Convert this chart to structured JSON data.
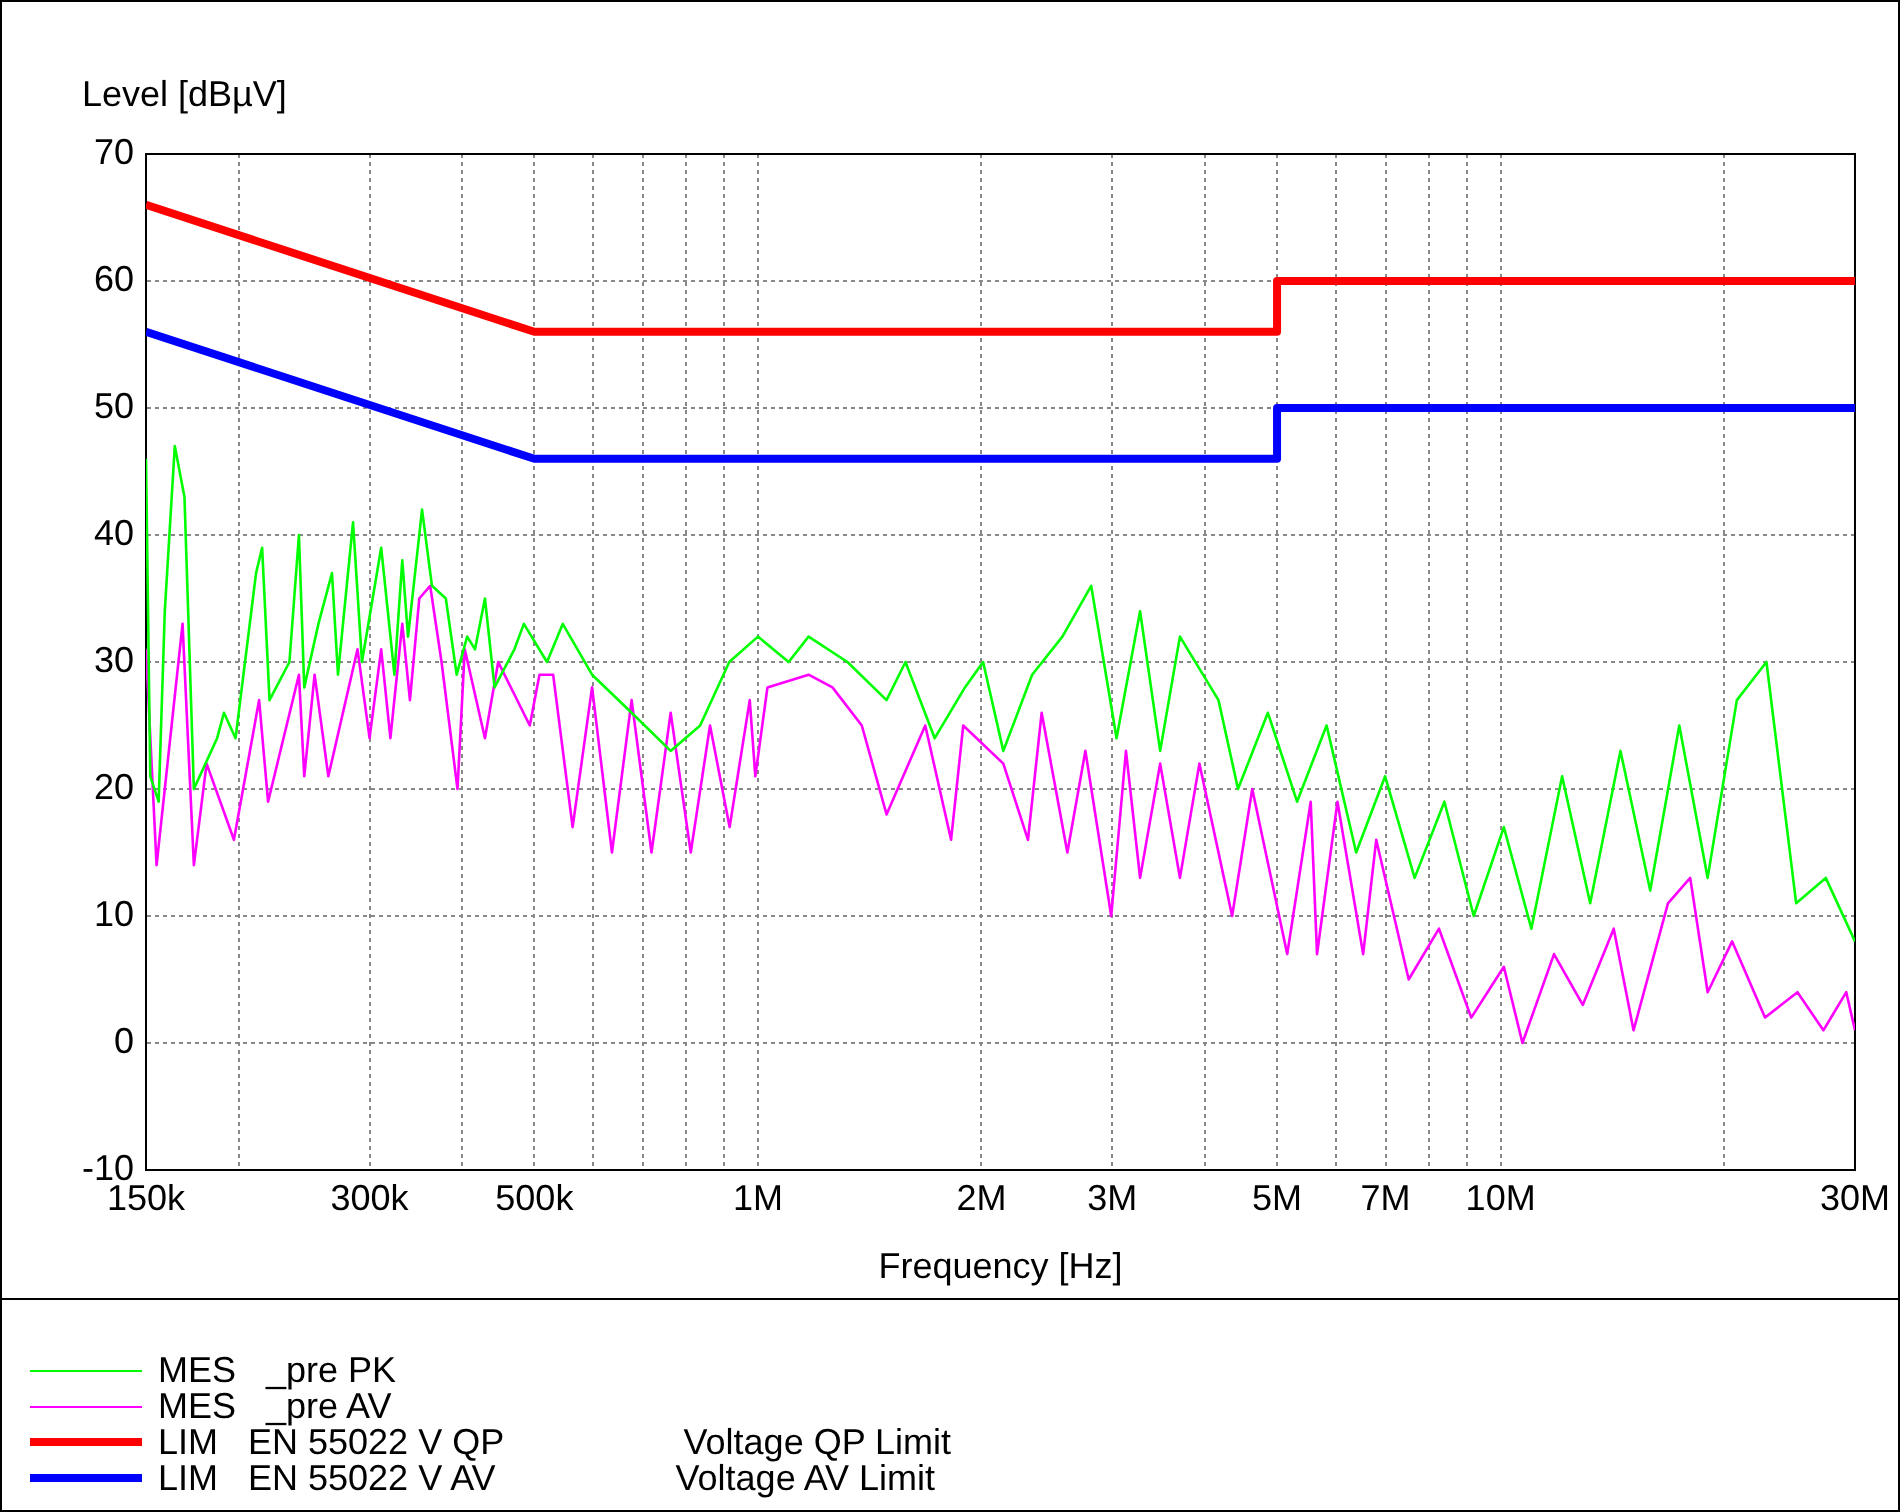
{
  "chart_data": {
    "type": "line",
    "ylabel": "Level [dBµV]",
    "xlabel": "Frequency [Hz]",
    "log": "x",
    "grid": true,
    "legend": "bottom",
    "marker": "none",
    "line_style": "solid",
    "xlim": [
      150000,
      30000000
    ],
    "xticks": [
      {
        "value": 150000,
        "label": "150k"
      },
      {
        "value": 200000,
        "label": null
      },
      {
        "value": 300000,
        "label": "300k"
      },
      {
        "value": 400000,
        "label": null
      },
      {
        "value": 500000,
        "label": "500k"
      },
      {
        "value": 600000,
        "label": null
      },
      {
        "value": 700000,
        "label": null
      },
      {
        "value": 800000,
        "label": null
      },
      {
        "value": 900000,
        "label": null
      },
      {
        "value": 1000000,
        "label": "1M"
      },
      {
        "value": 2000000,
        "label": "2M"
      },
      {
        "value": 3000000,
        "label": "3M"
      },
      {
        "value": 4000000,
        "label": null
      },
      {
        "value": 5000000,
        "label": "5M"
      },
      {
        "value": 6000000,
        "label": null
      },
      {
        "value": 7000000,
        "label": "7M"
      },
      {
        "value": 8000000,
        "label": null
      },
      {
        "value": 9000000,
        "label": null
      },
      {
        "value": 10000000,
        "label": "10M"
      },
      {
        "value": 20000000,
        "label": null
      },
      {
        "value": 30000000,
        "label": "30M"
      }
    ],
    "ylim": [
      -10,
      70
    ],
    "yticks": [
      -10,
      0,
      10,
      20,
      30,
      40,
      50,
      60,
      70
    ],
    "series": [
      {
        "name": "MES   _pre PK",
        "color": "#00ff00",
        "x": [
          150000,
          152000,
          156000,
          159000,
          164000,
          169000,
          174000,
          187000,
          191000,
          198000,
          211000,
          215000,
          220000,
          234000,
          241000,
          245000,
          256000,
          267000,
          272000,
          285000,
          293000,
          311000,
          324000,
          332000,
          338000,
          353000,
          364000,
          380000,
          393000,
          406000,
          416000,
          429000,
          442000,
          470000,
          484000,
          520000,
          546000,
          598000,
          676000,
          763000,
          836000,
          915000,
          1000000,
          1100000,
          1170000,
          1320000,
          1490000,
          1580000,
          1730000,
          1900000,
          2010000,
          2140000,
          2340000,
          2570000,
          2810000,
          3040000,
          3270000,
          3480000,
          3700000,
          4170000,
          4430000,
          4860000,
          5320000,
          5830000,
          6390000,
          6990000,
          7660000,
          8400000,
          9200000,
          10100000,
          11000000,
          12100000,
          13200000,
          14500000,
          15900000,
          17400000,
          19000000,
          20800000,
          22800000,
          25000000,
          27400000,
          30000000
        ],
        "values": [
          46,
          21,
          19,
          34,
          47,
          43,
          20,
          24,
          26,
          24,
          37,
          39,
          27,
          30,
          40,
          28,
          33,
          37,
          29,
          41,
          30,
          39,
          29,
          38,
          32,
          42,
          36,
          35,
          29,
          32,
          31,
          35,
          28,
          31,
          33,
          30,
          33,
          29,
          26,
          23,
          25,
          30,
          32,
          30,
          32,
          30,
          27,
          30,
          24,
          28,
          30,
          23,
          29,
          32,
          36,
          24,
          34,
          23,
          32,
          27,
          20,
          26,
          19,
          25,
          15,
          21,
          13,
          19,
          10,
          17,
          9,
          21,
          11,
          23,
          12,
          25,
          13,
          27,
          30,
          11,
          13,
          8
        ]
      },
      {
        "name": "MES   _pre AV",
        "color": "#ff00ff",
        "x": [
          150000,
          155000,
          168000,
          174000,
          181000,
          197000,
          213000,
          219000,
          241000,
          245000,
          253000,
          264000,
          289000,
          300000,
          311000,
          320000,
          332000,
          340000,
          350000,
          362000,
          375000,
          394000,
          403000,
          429000,
          447000,
          493000,
          508000,
          530000,
          563000,
          598000,
          636000,
          676000,
          719000,
          763000,
          812000,
          862000,
          916000,
          975000,
          992000,
          1030000,
          1170000,
          1260000,
          1380000,
          1490000,
          1680000,
          1820000,
          1890000,
          2140000,
          2310000,
          2410000,
          2610000,
          2760000,
          2990000,
          3130000,
          3270000,
          3480000,
          3700000,
          3930000,
          4350000,
          4630000,
          5160000,
          5550000,
          5660000,
          6030000,
          6530000,
          6800000,
          7520000,
          8260000,
          9130000,
          10100000,
          10700000,
          11800000,
          12900000,
          14200000,
          15100000,
          16800000,
          18000000,
          19000000,
          20500000,
          22700000,
          25100000,
          27200000,
          29200000,
          30000000
        ],
        "values": [
          31,
          14,
          33,
          14,
          22,
          16,
          27,
          19,
          29,
          21,
          29,
          21,
          31,
          24,
          31,
          24,
          33,
          27,
          35,
          36,
          30,
          20,
          31,
          24,
          30,
          25,
          29,
          29,
          17,
          28,
          15,
          27,
          15,
          26,
          15,
          25,
          17,
          27,
          21,
          28,
          29,
          28,
          25,
          18,
          25,
          16,
          25,
          22,
          16,
          26,
          15,
          23,
          10,
          23,
          13,
          22,
          13,
          22,
          10,
          20,
          7,
          19,
          7,
          19,
          7,
          16,
          5,
          9,
          2,
          6,
          0,
          7,
          3,
          9,
          1,
          11,
          13,
          4,
          8,
          2,
          4,
          1,
          4,
          1
        ]
      },
      {
        "name": "LIM   EN 55022 V QP                  Voltage QP Limit",
        "color": "#ff0000",
        "x": [
          150000,
          500000,
          5000000,
          5000000,
          30000000
        ],
        "values": [
          66,
          56,
          56,
          60,
          60
        ]
      },
      {
        "name": "LIM   EN 55022 V AV                  Voltage AV Limit",
        "color": "#0000ff",
        "x": [
          150000,
          500000,
          5000000,
          5000000,
          30000000
        ],
        "values": [
          56,
          46,
          46,
          50,
          50
        ]
      }
    ]
  }
}
